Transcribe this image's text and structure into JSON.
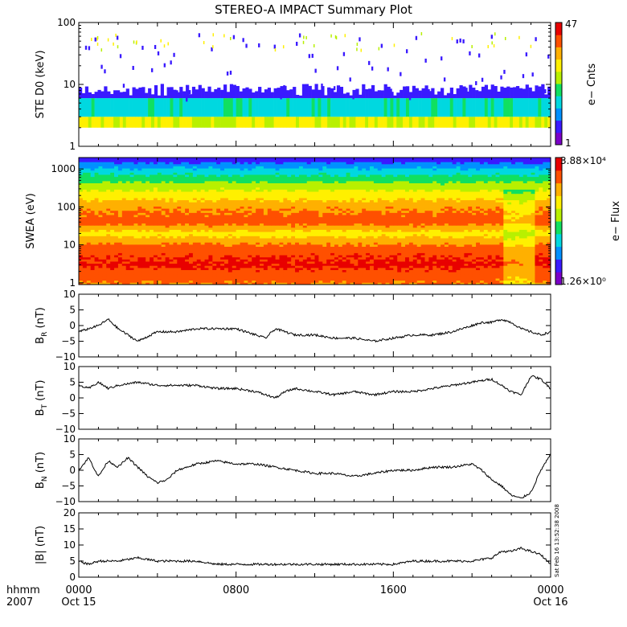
{
  "title": "STEREO-A IMPACT Summary Plot",
  "timestamp_label": "Sat Feb 16 13:52:38 2008",
  "time_axis": {
    "row1_label": "hhmm",
    "row2_label": "2007",
    "ticks": [
      {
        "hour": 0,
        "label": "0000",
        "date": "Oct 15"
      },
      {
        "hour": 8,
        "label": "0800",
        "date": ""
      },
      {
        "hour": 16,
        "label": "1600",
        "date": ""
      },
      {
        "hour": 24,
        "label": "0000",
        "date": "Oct 16"
      }
    ],
    "xlim_hours": [
      0,
      24
    ]
  },
  "colors": {
    "spectrogram_scale": [
      "#7b00c8",
      "#3a1aff",
      "#0090ff",
      "#00d8e0",
      "#10e060",
      "#b8f000",
      "#fff000",
      "#ffb000",
      "#ff5000",
      "#e80000"
    ],
    "line": "#000000"
  },
  "chart_data": [
    {
      "type": "heatmap",
      "id": "ste",
      "ylabel": "STE D0 (keV)",
      "yscale": "log",
      "ylim": [
        1,
        100
      ],
      "yticks": [
        {
          "v": 1,
          "label": "1"
        },
        {
          "v": 10,
          "label": "10"
        },
        {
          "v": 100,
          "label": "100"
        }
      ],
      "colorbar": {
        "label": "e− Cnts",
        "max_label": "47",
        "min_label": "1",
        "max": 47,
        "min": 1
      },
      "band_keV": [
        2,
        6
      ],
      "sparse_max_keV": 70
    },
    {
      "type": "heatmap",
      "id": "swea",
      "ylabel": "SWEA (eV)",
      "yscale": "log",
      "ylim": [
        0.9,
        2000
      ],
      "yticks": [
        {
          "v": 1,
          "label": "1"
        },
        {
          "v": 10,
          "label": "10"
        },
        {
          "v": 100,
          "label": "100"
        },
        {
          "v": 1000,
          "label": "1000"
        }
      ],
      "colorbar": {
        "label": "e− Flux",
        "max_label": "3.88×10⁴",
        "min_label": "1.26×10⁰",
        "max": 38800,
        "min": 1.26
      },
      "flux_profile": [
        {
          "energy_eV": 1,
          "level": 0.8
        },
        {
          "energy_eV": 3,
          "level": 0.92
        },
        {
          "energy_eV": 8,
          "level": 0.86
        },
        {
          "energy_eV": 20,
          "level": 0.66
        },
        {
          "energy_eV": 40,
          "level": 0.85
        },
        {
          "energy_eV": 100,
          "level": 0.78
        },
        {
          "energy_eV": 250,
          "level": 0.62
        },
        {
          "energy_eV": 500,
          "level": 0.48
        },
        {
          "energy_eV": 900,
          "level": 0.34
        },
        {
          "energy_eV": 1500,
          "level": 0.2
        },
        {
          "energy_eV": 2000,
          "level": 0.12
        }
      ]
    },
    {
      "type": "line",
      "id": "br",
      "ylabel_main": "B",
      "ylabel_sub": "R",
      "ylabel_unit": " (nT)",
      "ylim": [
        -10,
        10
      ],
      "yticks": [
        {
          "v": -10,
          "label": "−10"
        },
        {
          "v": -5,
          "label": "−5"
        },
        {
          "v": 0,
          "label": "0"
        },
        {
          "v": 5,
          "label": "5"
        },
        {
          "v": 10,
          "label": "10"
        }
      ],
      "x": [
        0,
        0.5,
        1,
        1.5,
        2,
        2.5,
        3,
        4,
        5,
        6,
        7,
        8,
        9,
        9.5,
        10,
        10.5,
        11,
        12,
        13,
        14,
        15,
        16,
        17,
        18,
        19,
        20,
        20.5,
        21,
        21.5,
        22,
        22.5,
        23,
        23.5,
        24
      ],
      "y": [
        -2,
        -1,
        0,
        2,
        -1,
        -3,
        -5,
        -2,
        -2,
        -1,
        -1,
        -1,
        -3,
        -4,
        -1,
        -2,
        -3,
        -3,
        -4,
        -4,
        -5,
        -4,
        -3,
        -3,
        -2,
        0,
        1,
        1,
        2,
        1,
        -1,
        -2,
        -3,
        -2
      ]
    },
    {
      "type": "line",
      "id": "bt",
      "ylabel_main": "B",
      "ylabel_sub": "T",
      "ylabel_unit": " (nT)",
      "ylim": [
        -10,
        10
      ],
      "yticks": [
        {
          "v": -10,
          "label": "−10"
        },
        {
          "v": -5,
          "label": "−5"
        },
        {
          "v": 0,
          "label": "0"
        },
        {
          "v": 5,
          "label": "5"
        },
        {
          "v": 10,
          "label": "10"
        }
      ],
      "x": [
        0,
        0.5,
        1,
        1.5,
        2,
        3,
        4,
        5,
        6,
        7,
        8,
        9,
        9.5,
        10,
        10.5,
        11,
        12,
        13,
        14,
        15,
        16,
        17,
        18,
        19,
        20,
        21,
        21.5,
        22,
        22.5,
        23,
        23.5,
        24
      ],
      "y": [
        4,
        3,
        5,
        3,
        4,
        5,
        4,
        4,
        4,
        3,
        3,
        2,
        1,
        0,
        2,
        3,
        2,
        1,
        2,
        1,
        2,
        2,
        3,
        4,
        5,
        6,
        4,
        2,
        1,
        7,
        6,
        3
      ]
    },
    {
      "type": "line",
      "id": "bn",
      "ylabel_main": "B",
      "ylabel_sub": "N",
      "ylabel_unit": " (nT)",
      "ylim": [
        -10,
        10
      ],
      "yticks": [
        {
          "v": -10,
          "label": "−10"
        },
        {
          "v": -5,
          "label": "−5"
        },
        {
          "v": 0,
          "label": "0"
        },
        {
          "v": 5,
          "label": "5"
        },
        {
          "v": 10,
          "label": "10"
        }
      ],
      "x": [
        0,
        0.5,
        1,
        1.5,
        2,
        2.5,
        3,
        3.5,
        4,
        4.5,
        5,
        6,
        7,
        8,
        9,
        10,
        11,
        12,
        13,
        14,
        15,
        16,
        17,
        18,
        19,
        20,
        20.5,
        21,
        21.5,
        22,
        22.5,
        23,
        23.5,
        24
      ],
      "y": [
        0,
        4,
        -2,
        3,
        1,
        4,
        1,
        -2,
        -4,
        -3,
        0,
        2,
        3,
        2,
        2,
        1,
        0,
        -1,
        -1,
        -2,
        -1,
        0,
        0,
        1,
        1,
        2,
        0,
        -3,
        -5,
        -8,
        -9,
        -7,
        0,
        5
      ]
    },
    {
      "type": "line",
      "id": "bmag",
      "ylabel_main": "|B|",
      "ylabel_sub": "",
      "ylabel_unit": " (nT)",
      "ylim": [
        0,
        20
      ],
      "yticks": [
        {
          "v": 0,
          "label": "0"
        },
        {
          "v": 5,
          "label": "5"
        },
        {
          "v": 10,
          "label": "10"
        },
        {
          "v": 15,
          "label": "15"
        },
        {
          "v": 20,
          "label": "20"
        }
      ],
      "x": [
        0,
        0.5,
        1,
        2,
        3,
        4,
        5,
        6,
        7,
        8,
        9,
        10,
        11,
        12,
        13,
        14,
        15,
        16,
        17,
        18,
        19,
        20,
        21,
        21.5,
        22,
        22.5,
        23,
        23.5,
        24
      ],
      "y": [
        5,
        4,
        5,
        5,
        6,
        5,
        5,
        5,
        4,
        4,
        4,
        4,
        4,
        4,
        4,
        4,
        4,
        4,
        5,
        5,
        5,
        5,
        6,
        8,
        8,
        9,
        8,
        7,
        4
      ]
    }
  ]
}
